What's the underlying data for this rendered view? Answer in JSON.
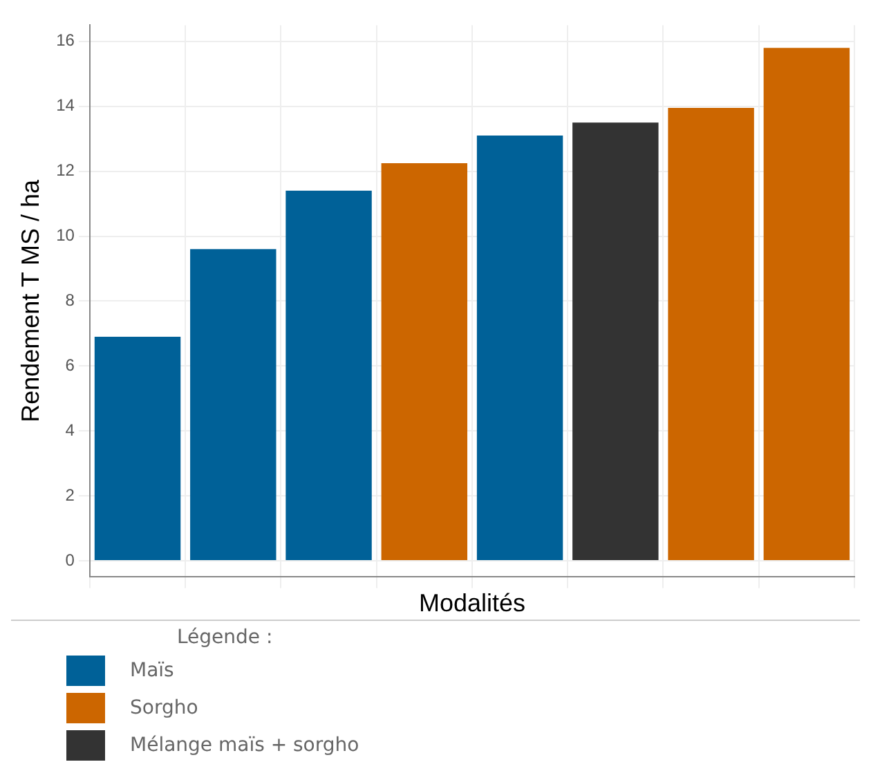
{
  "chart_data": {
    "type": "bar",
    "xlabel": "Modalités",
    "ylabel": "Rendement T MS / ha",
    "legend_title": "Légende :",
    "categories": [
      null,
      null,
      null,
      null,
      null,
      null,
      null,
      null
    ],
    "series": [
      {
        "name": "Maïs",
        "color": "#006198",
        "values": [
          6.9,
          9.6,
          11.4,
          null,
          13.1,
          null,
          null,
          null
        ]
      },
      {
        "name": "Sorgho",
        "color": "#cc6600",
        "values": [
          null,
          null,
          null,
          12.25,
          null,
          null,
          13.95,
          15.8
        ]
      },
      {
        "name": "Mélange maïs + sorgho",
        "color": "#333333",
        "values": [
          null,
          null,
          null,
          null,
          null,
          13.5,
          null,
          null
        ]
      }
    ],
    "ylim": [
      -0.5,
      16.5
    ],
    "yticks": [
      0,
      2,
      4,
      6,
      8,
      10,
      12,
      14,
      16
    ],
    "grid": true,
    "legend": "bottom"
  }
}
